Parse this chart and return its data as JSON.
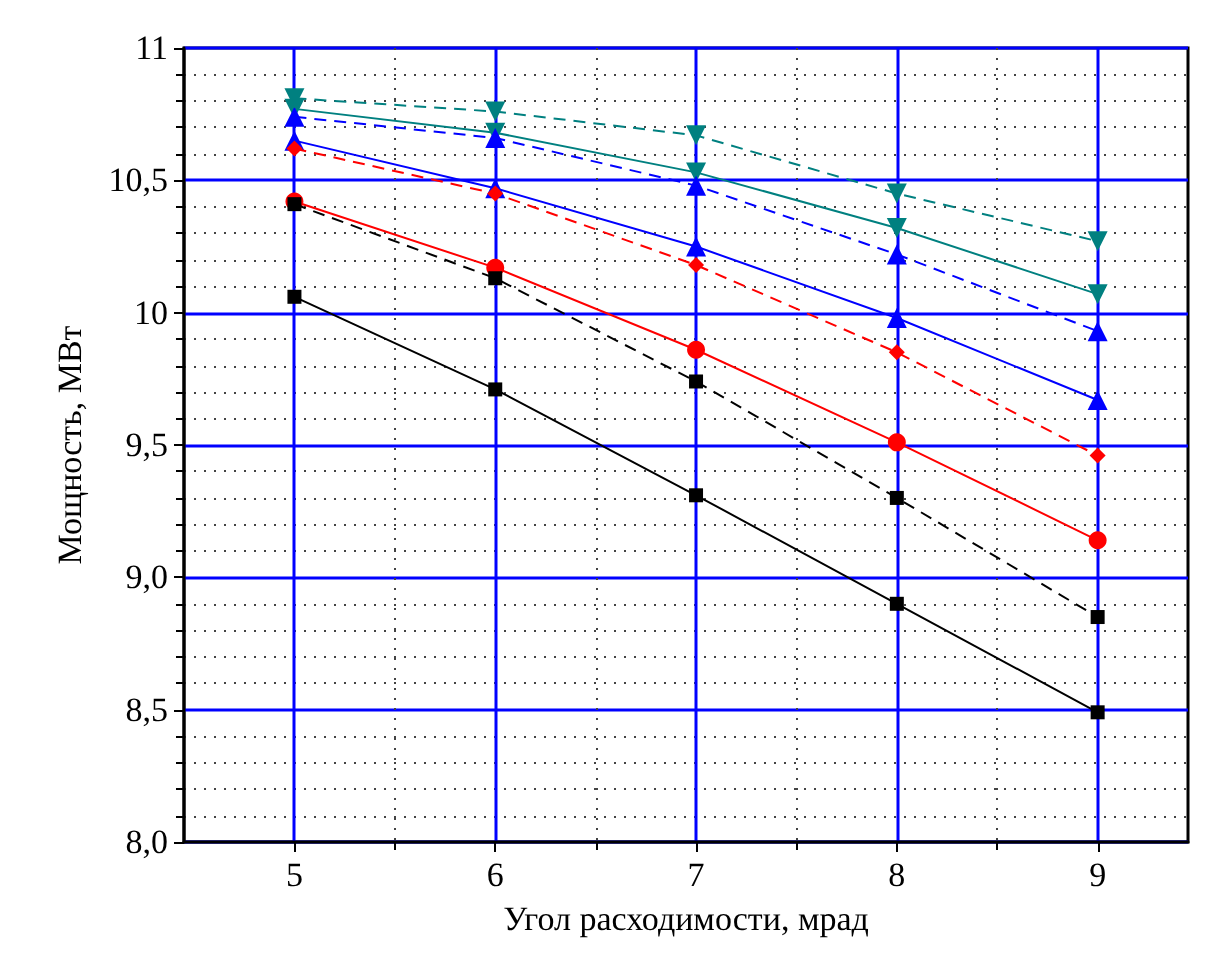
{
  "chart_data": {
    "type": "line",
    "xlabel": "Угол расходимости, мрад",
    "ylabel": "Мощность, МВт",
    "x": [
      5,
      6,
      7,
      8,
      9
    ],
    "xlim": [
      4.45,
      9.45
    ],
    "xticks": [
      5,
      {
        "value": 5.5,
        "label": null
      },
      6,
      {
        "value": 6.5,
        "label": null
      },
      7,
      {
        "value": 7.5,
        "label": null
      },
      8,
      {
        "value": 8.5,
        "label": null
      },
      9
    ],
    "ylim": [
      8.0,
      11
    ],
    "yticks": [
      {
        "value": 8.0,
        "label": "8,0"
      },
      {
        "value": 8.1,
        "label": null
      },
      {
        "value": 8.2,
        "label": null
      },
      {
        "value": 8.3,
        "label": null
      },
      {
        "value": 8.4,
        "label": null
      },
      {
        "value": 8.5,
        "label": "8,5"
      },
      {
        "value": 8.6,
        "label": null
      },
      {
        "value": 8.7,
        "label": null
      },
      {
        "value": 8.8,
        "label": null
      },
      {
        "value": 8.9,
        "label": null
      },
      {
        "value": 9.0,
        "label": "9,0"
      },
      {
        "value": 9.1,
        "label": null
      },
      {
        "value": 9.2,
        "label": null
      },
      {
        "value": 9.3,
        "label": null
      },
      {
        "value": 9.4,
        "label": null
      },
      {
        "value": 9.5,
        "label": "9,5"
      },
      {
        "value": 9.6,
        "label": null
      },
      {
        "value": 9.7,
        "label": null
      },
      {
        "value": 9.8,
        "label": null
      },
      {
        "value": 9.9,
        "label": null
      },
      10,
      {
        "value": 10.1,
        "label": null
      },
      {
        "value": 10.2,
        "label": null
      },
      {
        "value": 10.3,
        "label": null
      },
      {
        "value": 10.4,
        "label": null
      },
      {
        "value": 10.5,
        "label": "10,5"
      },
      {
        "value": 10.6,
        "label": null
      },
      {
        "value": 10.7,
        "label": null
      },
      {
        "value": 10.8,
        "label": null
      },
      {
        "value": 10.9,
        "label": null
      },
      11
    ],
    "grid": true,
    "series": [
      {
        "color": "#000000",
        "marker": "square",
        "line_style": "solid",
        "values": [
          10.06,
          9.71,
          9.31,
          8.9,
          8.49
        ]
      },
      {
        "color": "#000000",
        "marker": "square",
        "line_style": "dashed",
        "values": [
          10.41,
          10.13,
          9.74,
          9.3,
          8.85
        ]
      },
      {
        "color": "#ff0000",
        "marker": "circle",
        "line_style": "solid",
        "values": [
          10.42,
          10.17,
          9.86,
          9.51,
          9.14
        ]
      },
      {
        "color": "#ff0000",
        "marker": "diamond",
        "line_style": "dashed",
        "values": [
          10.62,
          10.45,
          10.18,
          9.85,
          9.46
        ]
      },
      {
        "color": "#0000ff",
        "marker": "triangle",
        "line_style": "solid",
        "values": [
          10.65,
          10.47,
          10.25,
          9.98,
          9.67
        ]
      },
      {
        "color": "#0000ff",
        "marker": "triangle",
        "line_style": "dashed",
        "values": [
          10.74,
          10.66,
          10.48,
          10.22,
          9.93
        ]
      },
      {
        "color": "#008080",
        "marker": "triangle-down",
        "line_style": "solid",
        "values": [
          10.77,
          10.68,
          10.53,
          10.32,
          10.07
        ]
      },
      {
        "color": "#008080",
        "marker": "triangle-down",
        "line_style": "dashed",
        "values": [
          10.81,
          10.76,
          10.67,
          10.45,
          10.27
        ]
      }
    ]
  }
}
